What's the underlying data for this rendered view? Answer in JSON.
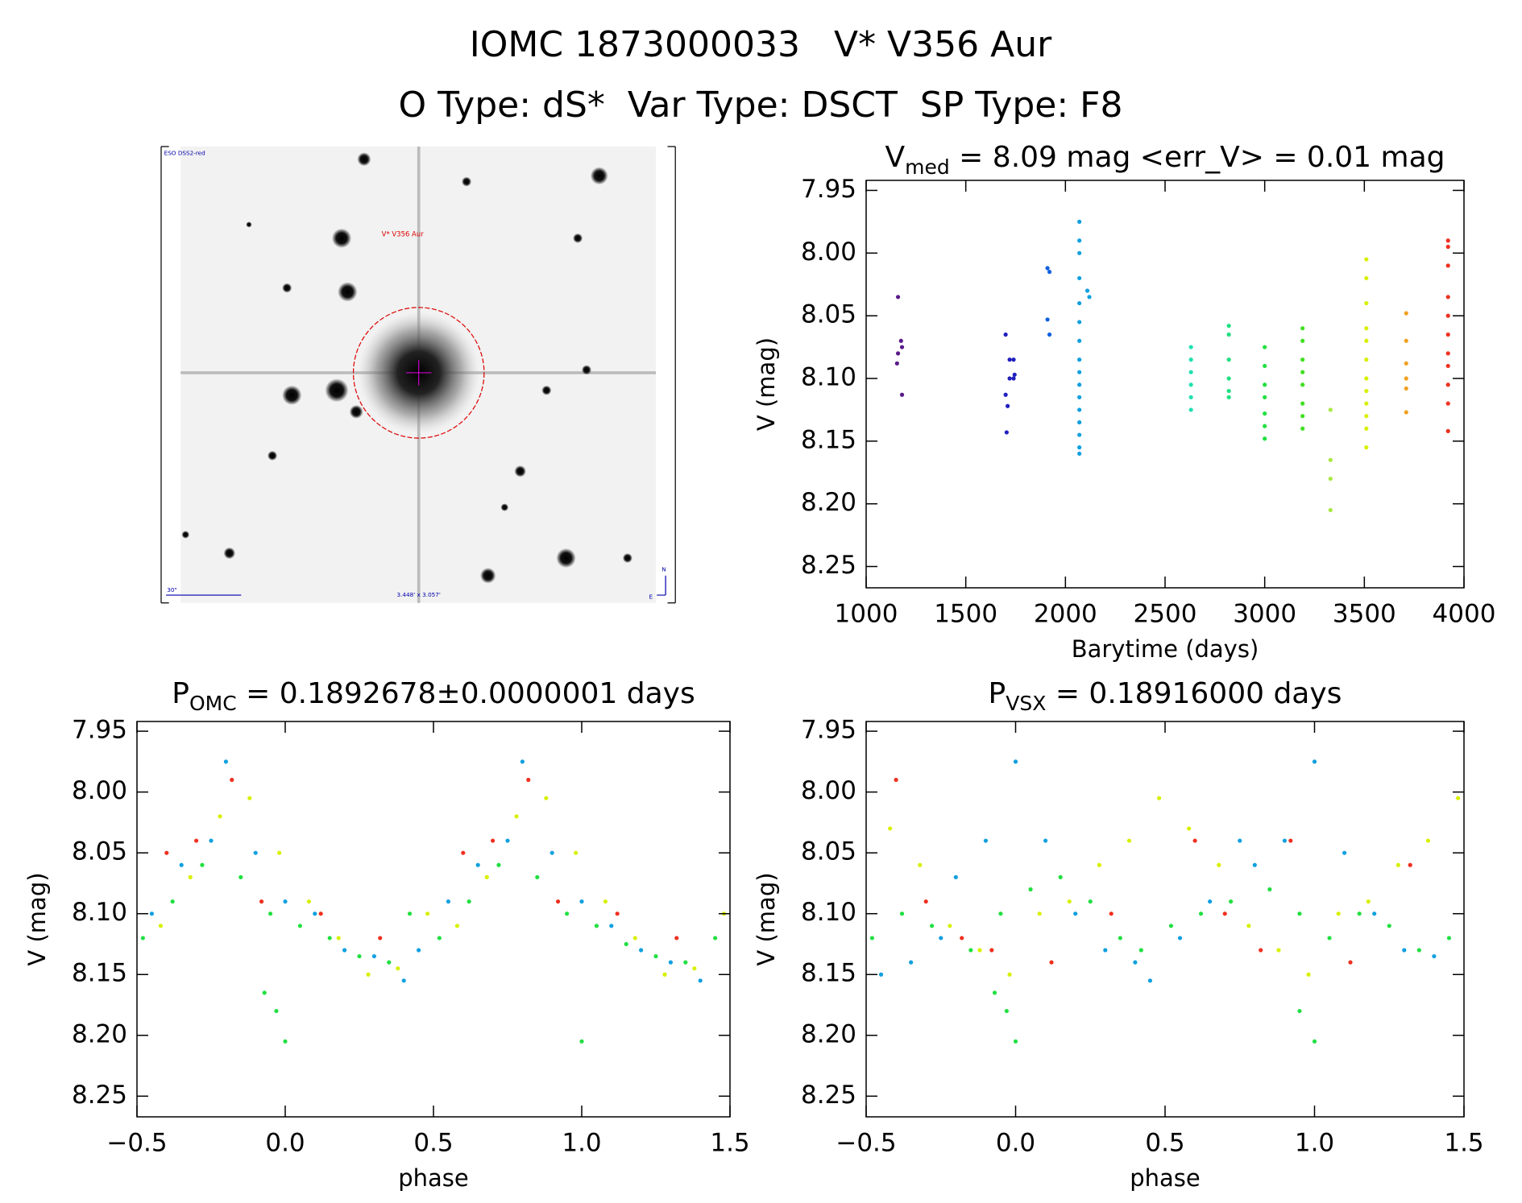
{
  "header": {
    "line1": "IOMC 1873000033   V* V356 Aur",
    "line2": "O Type: dS*  Var Type: DSCT  SP Type: F8"
  },
  "image_panel": {
    "survey": "ESO DSS2-red",
    "target": "V* V356 Aur",
    "scale": "30\"",
    "field": "3.448' x 3.057'",
    "north": "N",
    "east": "E"
  },
  "chart_data": [
    {
      "type": "scatter",
      "title": {
        "text": "V",
        "subscript": "med",
        "rest": " = 8.09 mag <err_V> = 0.01 mag"
      },
      "xlabel": "Barytime (days)",
      "ylabel": "V (mag)",
      "xlim": [
        1000,
        4000
      ],
      "xticks": [
        1000,
        1500,
        2000,
        2500,
        3000,
        3500,
        4000
      ],
      "ylim": [
        8.267,
        7.942
      ],
      "yticks": [
        7.95,
        {
          "value": 8.0,
          "label": "8.00"
        },
        8.05,
        {
          "value": 8.1,
          "label": "8.10"
        },
        8.15,
        {
          "value": 8.2,
          "label": "8.20"
        },
        8.25
      ],
      "series": [
        {
          "color": "#5a1a8a",
          "x": [
            1160,
            1175,
            1180,
            1160,
            1155,
            1180
          ],
          "values": [
            8.035,
            8.07,
            8.075,
            8.08,
            8.088,
            8.113
          ]
        },
        {
          "color": "#2020c0",
          "x": [
            1700,
            1720,
            1740,
            1745,
            1720,
            1740,
            1700,
            1710,
            1705
          ],
          "values": [
            8.065,
            8.085,
            8.085,
            8.097,
            8.1,
            8.1,
            8.113,
            8.122,
            8.143
          ]
        },
        {
          "color": "#1060e0",
          "x": [
            1910,
            1920,
            1910,
            1920
          ],
          "values": [
            8.012,
            8.015,
            8.053,
            8.065
          ]
        },
        {
          "color": "#10a0e0",
          "x": [
            2070,
            2070,
            2070,
            2070,
            2070,
            2070,
            2070,
            2070,
            2070,
            2070,
            2070,
            2070,
            2070,
            2070,
            2070,
            2070,
            2110,
            2120
          ],
          "values": [
            7.975,
            7.99,
            8.0,
            8.02,
            8.04,
            8.055,
            8.07,
            8.085,
            8.095,
            8.105,
            8.115,
            8.125,
            8.135,
            8.145,
            8.155,
            8.16,
            8.03,
            8.035
          ]
        },
        {
          "color": "#20e0b0",
          "x": [
            2630,
            2630,
            2630,
            2630,
            2630,
            2630
          ],
          "values": [
            8.075,
            8.085,
            8.095,
            8.105,
            8.115,
            8.125
          ]
        },
        {
          "color": "#20e080",
          "x": [
            2820,
            2820,
            2820,
            2820,
            2820,
            2820
          ],
          "values": [
            8.058,
            8.065,
            8.085,
            8.1,
            8.11,
            8.115
          ]
        },
        {
          "color": "#20e040",
          "x": [
            3000,
            3000,
            3000,
            3000,
            3000,
            3000,
            3000
          ],
          "values": [
            8.075,
            8.09,
            8.105,
            8.115,
            8.128,
            8.138,
            8.148
          ]
        },
        {
          "color": "#40e020",
          "x": [
            3190,
            3190,
            3190,
            3190,
            3190,
            3190,
            3190,
            3190
          ],
          "values": [
            8.06,
            8.07,
            8.085,
            8.095,
            8.105,
            8.12,
            8.13,
            8.14
          ]
        },
        {
          "color": "#a8e840",
          "x": [
            3330,
            3330,
            3330,
            3330
          ],
          "values": [
            8.125,
            8.165,
            8.18,
            8.205
          ]
        },
        {
          "color": "#d8f000",
          "x": [
            3510,
            3510,
            3510,
            3510,
            3510,
            3510,
            3510,
            3510,
            3510,
            3510,
            3510,
            3510
          ],
          "values": [
            8.005,
            8.02,
            8.04,
            8.06,
            8.07,
            8.085,
            8.1,
            8.11,
            8.12,
            8.13,
            8.14,
            8.155
          ]
        },
        {
          "color": "#f0a020",
          "x": [
            3710,
            3710,
            3710,
            3710,
            3710,
            3710
          ],
          "values": [
            8.048,
            8.07,
            8.088,
            8.1,
            8.108,
            8.127
          ]
        },
        {
          "color": "#f03020",
          "x": [
            3920,
            3920,
            3920,
            3920,
            3920,
            3920,
            3920,
            3920,
            3920,
            3920,
            3920
          ],
          "values": [
            7.99,
            7.995,
            8.01,
            8.035,
            8.05,
            8.065,
            8.08,
            8.09,
            8.105,
            8.12,
            8.142
          ]
        }
      ]
    },
    {
      "type": "scatter",
      "title": {
        "text": "P",
        "subscript": "OMC",
        "rest": " = 0.1892678±0.0000001 days"
      },
      "xlabel": "phase",
      "ylabel": "V (mag)",
      "xlim": [
        -0.5,
        1.5
      ],
      "xticks": [
        {
          "value": -0.5,
          "label": "−0.5"
        },
        {
          "value": 0.0,
          "label": "0.0"
        },
        0.5,
        {
          "value": 1.0,
          "label": "1.0"
        },
        1.5
      ],
      "ylim": [
        8.267,
        7.942
      ],
      "yticks": [
        7.95,
        {
          "value": 8.0,
          "label": "8.00"
        },
        8.05,
        {
          "value": 8.1,
          "label": "8.10"
        },
        8.15,
        {
          "value": 8.2,
          "label": "8.20"
        },
        8.25
      ],
      "series": [
        {
          "color": "#10a0e0",
          "x": [
            -0.45,
            -0.35,
            -0.25,
            -0.2,
            -0.1,
            0.0,
            0.1,
            0.2,
            0.3,
            0.4,
            0.45,
            0.55,
            0.65,
            0.75,
            0.8,
            0.9,
            1.0,
            1.1,
            1.2,
            1.3,
            1.4
          ],
          "values": [
            8.1,
            8.06,
            8.04,
            7.975,
            8.05,
            8.09,
            8.1,
            8.13,
            8.135,
            8.155,
            8.13,
            8.09,
            8.06,
            8.04,
            7.975,
            8.05,
            8.09,
            8.11,
            8.13,
            8.14,
            8.155
          ]
        },
        {
          "color": "#20e040",
          "x": [
            -0.48,
            -0.38,
            -0.28,
            -0.15,
            -0.05,
            0.05,
            0.15,
            0.25,
            0.35,
            0.42,
            0.52,
            0.62,
            0.72,
            0.85,
            0.95,
            1.05,
            1.15,
            1.25,
            1.35,
            1.45,
            0.0,
            -0.03,
            -0.07,
            1.0
          ],
          "values": [
            8.12,
            8.09,
            8.06,
            8.07,
            8.1,
            8.11,
            8.12,
            8.135,
            8.14,
            8.1,
            8.12,
            8.09,
            8.06,
            8.07,
            8.1,
            8.11,
            8.125,
            8.135,
            8.14,
            8.12,
            8.205,
            8.18,
            8.165,
            8.205
          ]
        },
        {
          "color": "#d8f000",
          "x": [
            -0.42,
            -0.32,
            -0.22,
            -0.12,
            -0.02,
            0.08,
            0.18,
            0.28,
            0.38,
            0.48,
            0.58,
            0.68,
            0.78,
            0.88,
            0.98,
            1.08,
            1.18,
            1.28,
            1.38,
            1.48
          ],
          "values": [
            8.11,
            8.07,
            8.02,
            8.005,
            8.05,
            8.09,
            8.12,
            8.15,
            8.145,
            8.1,
            8.11,
            8.07,
            8.02,
            8.005,
            8.05,
            8.09,
            8.12,
            8.15,
            8.145,
            8.1
          ]
        },
        {
          "color": "#f03020",
          "x": [
            -0.4,
            -0.3,
            -0.18,
            -0.08,
            0.12,
            0.32,
            0.6,
            0.7,
            0.82,
            0.92,
            1.12,
            1.32
          ],
          "values": [
            8.05,
            8.04,
            7.99,
            8.09,
            8.1,
            8.12,
            8.05,
            8.04,
            7.99,
            8.09,
            8.1,
            8.12
          ]
        }
      ]
    },
    {
      "type": "scatter",
      "title": {
        "text": "P",
        "subscript": "VSX",
        "rest": " = 0.18916000 days"
      },
      "xlabel": "phase",
      "ylabel": "V (mag)",
      "xlim": [
        -0.5,
        1.5
      ],
      "xticks": [
        {
          "value": -0.5,
          "label": "−0.5"
        },
        {
          "value": 0.0,
          "label": "0.0"
        },
        0.5,
        {
          "value": 1.0,
          "label": "1.0"
        },
        1.5
      ],
      "ylim": [
        8.267,
        7.942
      ],
      "yticks": [
        7.95,
        {
          "value": 8.0,
          "label": "8.00"
        },
        8.05,
        {
          "value": 8.1,
          "label": "8.10"
        },
        8.15,
        {
          "value": 8.2,
          "label": "8.20"
        },
        8.25
      ],
      "series": [
        {
          "color": "#10a0e0",
          "x": [
            -0.45,
            -0.35,
            -0.25,
            -0.2,
            -0.1,
            0.0,
            0.1,
            0.2,
            0.3,
            0.4,
            0.45,
            0.55,
            0.65,
            0.75,
            0.8,
            0.9,
            1.0,
            1.1,
            1.2,
            1.3,
            1.4
          ],
          "values": [
            8.15,
            8.14,
            8.12,
            8.07,
            8.04,
            7.975,
            8.04,
            8.1,
            8.13,
            8.14,
            8.155,
            8.12,
            8.09,
            8.04,
            8.06,
            8.04,
            7.975,
            8.05,
            8.1,
            8.13,
            8.135
          ]
        },
        {
          "color": "#20e040",
          "x": [
            -0.48,
            -0.38,
            -0.28,
            -0.15,
            -0.05,
            0.05,
            0.15,
            0.25,
            0.35,
            0.42,
            0.52,
            0.62,
            0.72,
            0.85,
            0.95,
            1.05,
            1.15,
            1.25,
            1.35,
            1.45,
            0.0,
            -0.03,
            -0.07,
            0.95,
            1.0
          ],
          "values": [
            8.12,
            8.1,
            8.11,
            8.13,
            8.1,
            8.08,
            8.07,
            8.09,
            8.12,
            8.13,
            8.11,
            8.1,
            8.09,
            8.08,
            8.1,
            8.12,
            8.1,
            8.11,
            8.13,
            8.12,
            8.205,
            8.18,
            8.165,
            8.18,
            8.205
          ]
        },
        {
          "color": "#d8f000",
          "x": [
            -0.42,
            -0.32,
            -0.22,
            -0.12,
            -0.02,
            0.08,
            0.18,
            0.28,
            0.38,
            0.48,
            0.58,
            0.68,
            0.78,
            0.88,
            0.98,
            1.08,
            1.18,
            1.28,
            1.38,
            1.48
          ],
          "values": [
            8.03,
            8.06,
            8.11,
            8.13,
            8.15,
            8.1,
            8.09,
            8.06,
            8.04,
            8.005,
            8.03,
            8.06,
            8.11,
            8.13,
            8.15,
            8.1,
            8.09,
            8.06,
            8.04,
            8.005
          ]
        },
        {
          "color": "#f03020",
          "x": [
            -0.4,
            -0.3,
            -0.18,
            -0.08,
            0.12,
            0.32,
            0.6,
            0.7,
            0.82,
            0.92,
            1.12,
            1.32
          ],
          "values": [
            7.99,
            8.09,
            8.12,
            8.13,
            8.14,
            8.1,
            8.04,
            8.1,
            8.13,
            8.04,
            8.14,
            8.06
          ]
        }
      ]
    }
  ]
}
